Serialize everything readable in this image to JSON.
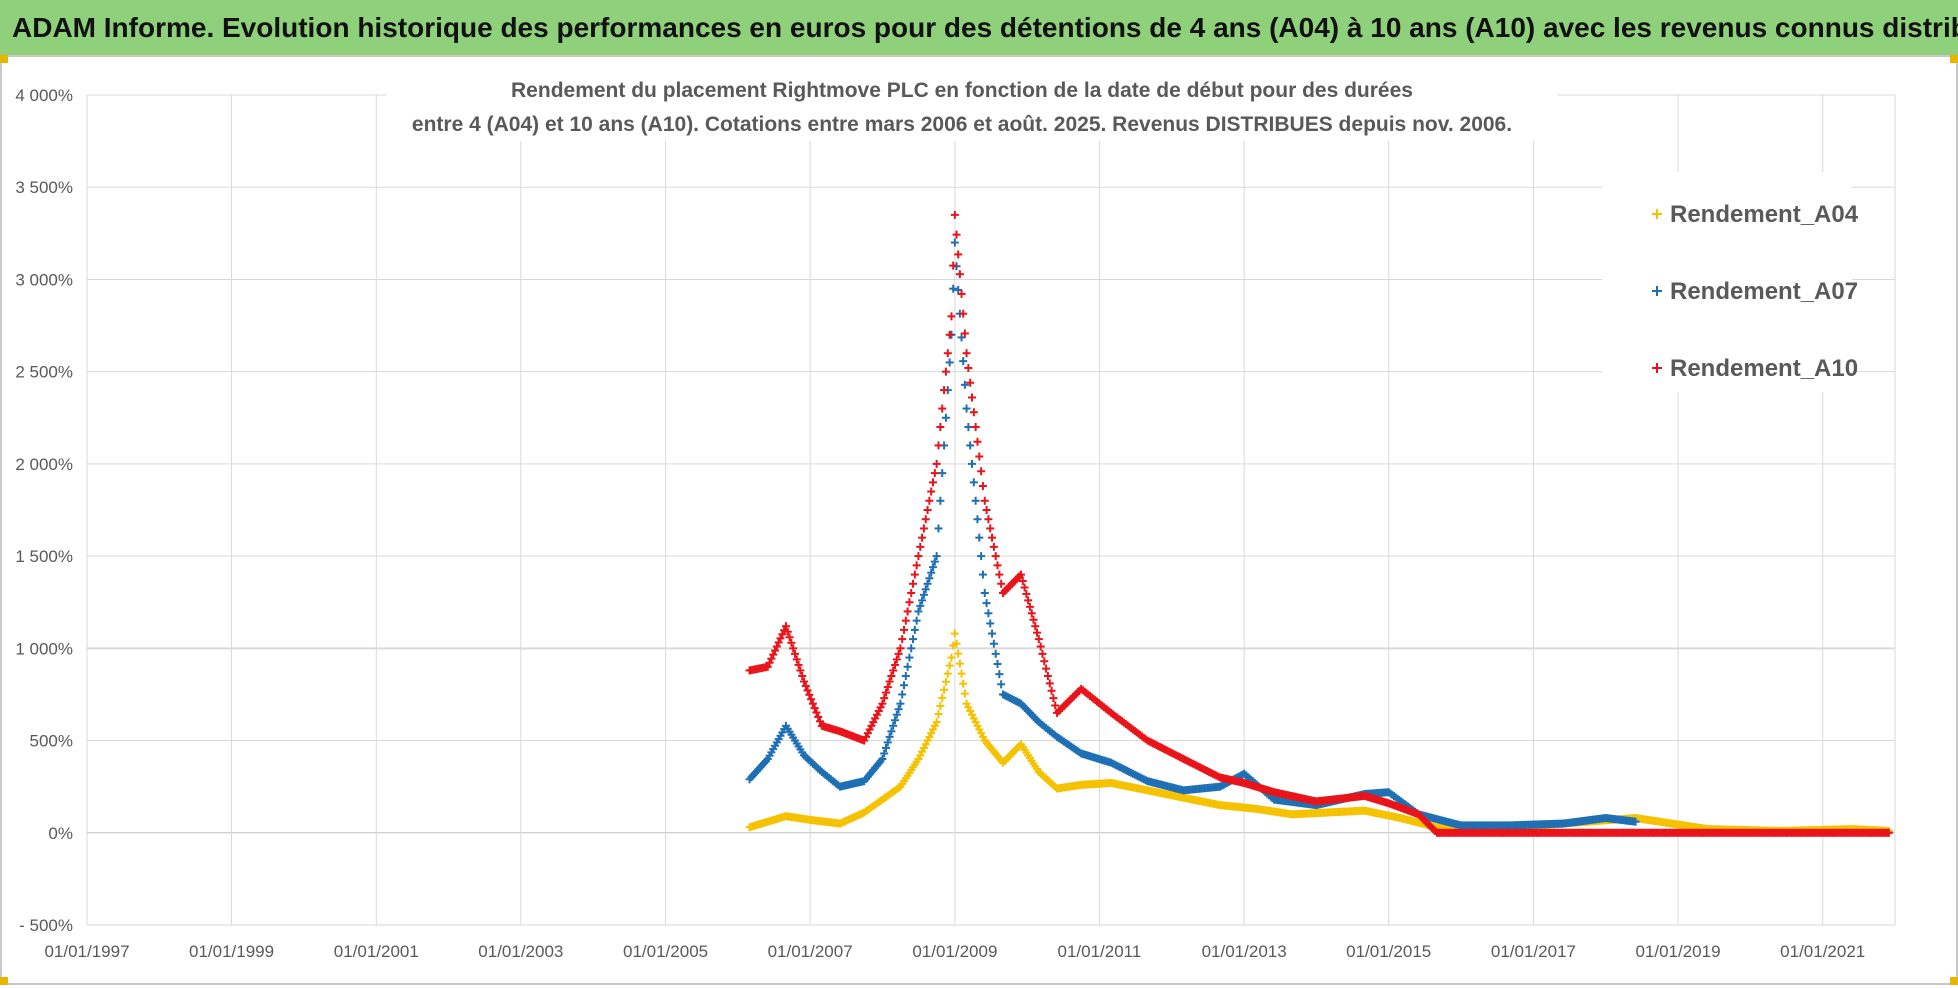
{
  "banner": {
    "title": "ADAM Informe. Evolution historique des performances en euros pour des détentions de 4 ans (A04) à 10 ans (A10) avec les revenus connus distribués"
  },
  "colors": {
    "banner_bg": "#8fd07a",
    "A04": "#f5c200",
    "A07": "#1f6fb4",
    "A10": "#e8141a"
  },
  "chart_data": {
    "type": "scatter",
    "title_line1": "Rendement du placement Rightmove PLC en fonction de la date de début pour des durées",
    "title_line2": "entre 4 (A04) et 10 ans (A10).  Cotations entre mars 2006 et août. 2025. Revenus DISTRIBUES depuis nov. 2006.",
    "xlabel": "",
    "ylabel": "",
    "x_ticks": [
      "01/01/1997",
      "01/01/1999",
      "01/01/2001",
      "01/01/2003",
      "01/01/2005",
      "01/01/2007",
      "01/01/2009",
      "01/01/2011",
      "01/01/2013",
      "01/01/2015",
      "01/01/2017",
      "01/01/2019",
      "01/01/2021"
    ],
    "xlim": [
      "1997-01-01",
      "2022-01-01"
    ],
    "y_ticks": [
      "- 500%",
      "0%",
      "500%",
      "1 000%",
      "1 500%",
      "2 000%",
      "2 500%",
      "3 000%",
      "3 500%",
      "4 000%"
    ],
    "ylim": [
      -500,
      4000
    ],
    "grid": true,
    "legend_position": "top-right",
    "series": [
      {
        "name": "Rendement_A04",
        "color": "#f5c200",
        "points": [
          [
            "2006-03-01",
            30
          ],
          [
            "2006-06-01",
            60
          ],
          [
            "2006-09-01",
            90
          ],
          [
            "2007-01-01",
            70
          ],
          [
            "2007-06-01",
            50
          ],
          [
            "2007-10-01",
            110
          ],
          [
            "2008-01-01",
            180
          ],
          [
            "2008-04-01",
            250
          ],
          [
            "2008-07-01",
            400
          ],
          [
            "2008-10-01",
            600
          ],
          [
            "2008-12-15",
            950
          ],
          [
            "2009-01-01",
            1080
          ],
          [
            "2009-03-01",
            700
          ],
          [
            "2009-06-01",
            500
          ],
          [
            "2009-09-01",
            380
          ],
          [
            "2009-12-01",
            480
          ],
          [
            "2010-03-01",
            330
          ],
          [
            "2010-06-01",
            240
          ],
          [
            "2010-10-01",
            260
          ],
          [
            "2011-03-01",
            270
          ],
          [
            "2011-09-01",
            230
          ],
          [
            "2012-03-01",
            190
          ],
          [
            "2012-09-01",
            150
          ],
          [
            "2013-03-01",
            130
          ],
          [
            "2013-09-01",
            100
          ],
          [
            "2014-03-01",
            110
          ],
          [
            "2014-09-01",
            120
          ],
          [
            "2015-03-01",
            80
          ],
          [
            "2015-09-01",
            30
          ],
          [
            "2016-06-01",
            20
          ],
          [
            "2017-06-01",
            50
          ],
          [
            "2018-06-01",
            80
          ],
          [
            "2019-06-01",
            20
          ],
          [
            "2020-06-01",
            10
          ],
          [
            "2021-06-01",
            20
          ],
          [
            "2021-12-01",
            10
          ]
        ]
      },
      {
        "name": "Rendement_A07",
        "color": "#1f6fb4",
        "points": [
          [
            "2006-03-01",
            290
          ],
          [
            "2006-06-01",
            400
          ],
          [
            "2006-09-01",
            580
          ],
          [
            "2006-12-01",
            420
          ],
          [
            "2007-03-01",
            330
          ],
          [
            "2007-06-01",
            250
          ],
          [
            "2007-10-01",
            280
          ],
          [
            "2008-01-01",
            400
          ],
          [
            "2008-04-01",
            700
          ],
          [
            "2008-07-01",
            1200
          ],
          [
            "2008-10-01",
            1500
          ],
          [
            "2008-12-15",
            2700
          ],
          [
            "2009-01-01",
            3200
          ],
          [
            "2009-03-01",
            2300
          ],
          [
            "2009-06-01",
            1300
          ],
          [
            "2009-09-01",
            750
          ],
          [
            "2009-12-01",
            700
          ],
          [
            "2010-03-01",
            600
          ],
          [
            "2010-06-01",
            520
          ],
          [
            "2010-10-01",
            430
          ],
          [
            "2011-03-01",
            380
          ],
          [
            "2011-09-01",
            280
          ],
          [
            "2012-03-01",
            230
          ],
          [
            "2012-09-01",
            250
          ],
          [
            "2013-01-01",
            320
          ],
          [
            "2013-06-01",
            180
          ],
          [
            "2014-01-01",
            150
          ],
          [
            "2014-09-01",
            210
          ],
          [
            "2015-01-01",
            220
          ],
          [
            "2015-06-01",
            100
          ],
          [
            "2016-01-01",
            40
          ],
          [
            "2016-09-01",
            40
          ],
          [
            "2017-06-01",
            50
          ],
          [
            "2018-01-01",
            80
          ],
          [
            "2018-06-01",
            60
          ]
        ]
      },
      {
        "name": "Rendement_A10",
        "color": "#e8141a",
        "points": [
          [
            "2006-03-01",
            880
          ],
          [
            "2006-06-01",
            900
          ],
          [
            "2006-09-01",
            1120
          ],
          [
            "2006-12-01",
            820
          ],
          [
            "2007-03-01",
            580
          ],
          [
            "2007-06-01",
            550
          ],
          [
            "2007-10-01",
            500
          ],
          [
            "2008-01-01",
            700
          ],
          [
            "2008-04-01",
            1000
          ],
          [
            "2008-07-01",
            1500
          ],
          [
            "2008-10-01",
            2000
          ],
          [
            "2008-12-15",
            2800
          ],
          [
            "2009-01-01",
            3350
          ],
          [
            "2009-03-01",
            2600
          ],
          [
            "2009-06-01",
            1800
          ],
          [
            "2009-09-01",
            1300
          ],
          [
            "2009-12-01",
            1400
          ],
          [
            "2010-03-01",
            1050
          ],
          [
            "2010-06-01",
            650
          ],
          [
            "2010-10-01",
            780
          ],
          [
            "2011-03-01",
            650
          ],
          [
            "2011-09-01",
            500
          ],
          [
            "2012-03-01",
            400
          ],
          [
            "2012-09-01",
            300
          ],
          [
            "2013-01-01",
            270
          ],
          [
            "2013-06-01",
            220
          ],
          [
            "2014-01-01",
            170
          ],
          [
            "2014-09-01",
            200
          ],
          [
            "2015-01-01",
            160
          ],
          [
            "2015-06-01",
            100
          ],
          [
            "2015-09-01",
            0
          ],
          [
            "2017-01-01",
            0
          ],
          [
            "2019-01-01",
            0
          ],
          [
            "2021-12-01",
            0
          ]
        ]
      }
    ]
  }
}
